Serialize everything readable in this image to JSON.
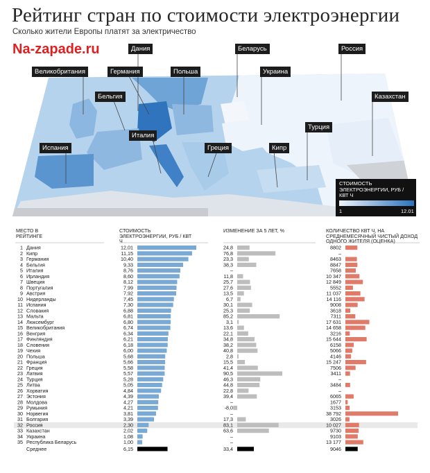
{
  "title": "Рейтинг стран по стоимости электроэнергии",
  "subtitle": "Сколько жители Европы платят за электричество",
  "brand": "Na-zapade.ru",
  "colors": {
    "price_bar": "#7aaad4",
    "change_bar": "#bdbdbd",
    "consumption_bar": "#e07b6a",
    "average_bar": "#000000",
    "map_dark": "#2a73c0",
    "map_light": "#f0f4fa"
  },
  "map": {
    "labels": [
      "Дания",
      "Беларусь",
      "Россия",
      "Великобритания",
      "Германия",
      "Польша",
      "Украина",
      "Бельгия",
      "Казахстан",
      "Италия",
      "Турция",
      "Испания",
      "Греция",
      "Кипр"
    ],
    "legend": {
      "title": "СТОИМОСТЬ ЭЛЕКТРОЭНЕРГИИ, РУБ / КВТ Ч",
      "min": "1",
      "max": "12.01"
    }
  },
  "table_headers": {
    "rank": "МЕСТО В РЕЙТИНГЕ",
    "price": "СТОИМОСТЬ ЭЛЕКТРОЭНЕРГИИ, РУБ / КВТ Ч",
    "change": "ИЗМЕНЕНИЕ ЗА 5 ЛЕТ, %",
    "consumption": "КОЛИЧЕСТВО КВТ Ч, НА СРЕДНЕМЕСЯЧНЫЙ ЧИСТЫЙ ДОХОД ОДНОГО ЖИТЕЛЯ (ОЦЕНКА)"
  },
  "chart_data": {
    "type": "bar",
    "columns": [
      "rank",
      "country",
      "price",
      "change",
      "consumption"
    ],
    "rows": [
      [
        "1",
        "Дания",
        "12,01",
        "24,8",
        "8802"
      ],
      [
        "2",
        "Кипр",
        "11,15",
        "76,8",
        "–"
      ],
      [
        "3",
        "Германия",
        "10,40",
        "23,3",
        "8463"
      ],
      [
        "4",
        "Бельгия",
        "9,33",
        "38,3",
        "8847"
      ],
      [
        "5",
        "Италия",
        "8,76",
        "–",
        "7658"
      ],
      [
        "6",
        "Ирландия",
        "8,60",
        "11,8",
        "10 347"
      ],
      [
        "7",
        "Швеция",
        "8,12",
        "25,7",
        "12 849"
      ],
      [
        "8",
        "Португалия",
        "7,99",
        "27,6",
        "5552"
      ],
      [
        "9",
        "Австрия",
        "7,92",
        "13,5",
        "11 037"
      ],
      [
        "10",
        "Нидерланды",
        "7,45",
        "6,7",
        "14 116"
      ],
      [
        "11",
        "Испания",
        "7,30",
        "30,1",
        "9008"
      ],
      [
        "12",
        "Словакия",
        "6,88",
        "25,3",
        "3618"
      ],
      [
        "13",
        "Мальта",
        "6,81",
        "85,2",
        "7311"
      ],
      [
        "14",
        "Люксембург",
        "6,80",
        "3,1",
        "17 631"
      ],
      [
        "15",
        "Великобритания",
        "6,74",
        "13,6",
        "14 658"
      ],
      [
        "16",
        "Венгрия",
        "6,34",
        "22,1",
        "3216"
      ],
      [
        "17",
        "Финляндия",
        "6,21",
        "34,8",
        "15 644"
      ],
      [
        "18",
        "Словения",
        "6,18",
        "38,2",
        "6158"
      ],
      [
        "19",
        "Чехия",
        "6,00",
        "40,8",
        "5066"
      ],
      [
        "20",
        "Польша",
        "5,68",
        "2,8",
        "4146"
      ],
      [
        "21",
        "Франция",
        "5,66",
        "15,5",
        "15 247"
      ],
      [
        "22",
        "Греция",
        "5,58",
        "41,4",
        "7506"
      ],
      [
        "23",
        "Латвия",
        "5,57",
        "90,5",
        "3411"
      ],
      [
        "24",
        "Турция",
        "5,28",
        "46,3",
        "–"
      ],
      [
        "25",
        "Литва",
        "5,05",
        "44,8",
        "3484"
      ],
      [
        "26",
        "Хорватия",
        "4,84",
        "22,8",
        "–"
      ],
      [
        "27",
        "Эстония",
        "4,39",
        "39,4",
        "6065"
      ],
      [
        "28",
        "Молдова",
        "4,27",
        "–",
        "1677"
      ],
      [
        "29",
        "Румыния",
        "4,21",
        "-8,0",
        "3153"
      ],
      [
        "30",
        "Норвегия",
        "3,81",
        "–",
        "38 792"
      ],
      [
        "31",
        "Болгария",
        "3,39",
        "17,3",
        "3026"
      ],
      [
        "32",
        "Россия",
        "2,30",
        "83,1",
        "10 027"
      ],
      [
        "33",
        "Казахстан",
        "2,02",
        "63,6",
        "9730"
      ],
      [
        "34",
        "Украина",
        "1,08",
        "–",
        "9103"
      ],
      [
        "35",
        "Республика Беларусь",
        "1,00",
        "–",
        "13 177"
      ]
    ],
    "average": {
      "label": "Среднее",
      "price": "6,15",
      "change": "33,4",
      "consumption": "9046"
    }
  }
}
